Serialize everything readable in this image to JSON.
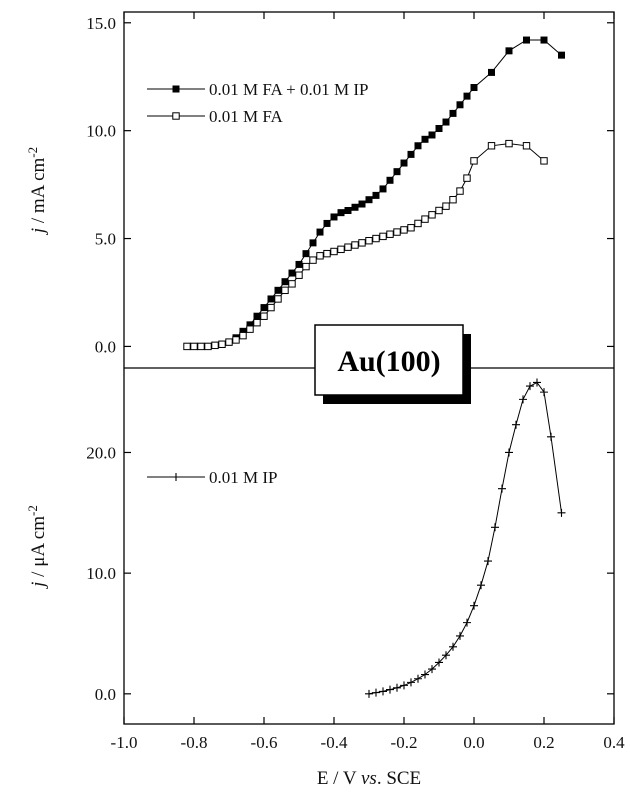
{
  "badge": "Au(100)",
  "chart_data": [
    {
      "type": "line",
      "panel": "top",
      "ylabel_parts": {
        "italic": "j",
        "text": " / mA cm",
        "sup": "-2"
      },
      "ylim": [
        -1.0,
        15.5
      ],
      "yticks": [
        {
          "v": 0.0,
          "label": "0.0"
        },
        {
          "v": 5.0,
          "label": "5.0"
        },
        {
          "v": 10.0,
          "label": "10.0"
        },
        {
          "v": 15.0,
          "label": "15.0"
        }
      ],
      "legend_position": "upper-left",
      "series": [
        {
          "name": "0.01 M FA + 0.01 M IP",
          "marker": "filled-square",
          "x": [
            -0.82,
            -0.8,
            -0.78,
            -0.76,
            -0.74,
            -0.72,
            -0.7,
            -0.68,
            -0.66,
            -0.64,
            -0.62,
            -0.6,
            -0.58,
            -0.56,
            -0.54,
            -0.52,
            -0.5,
            -0.48,
            -0.46,
            -0.44,
            -0.42,
            -0.4,
            -0.38,
            -0.36,
            -0.34,
            -0.32,
            -0.3,
            -0.28,
            -0.26,
            -0.24,
            -0.22,
            -0.2,
            -0.18,
            -0.16,
            -0.14,
            -0.12,
            -0.1,
            -0.08,
            -0.06,
            -0.04,
            -0.02,
            0.0,
            0.05,
            0.1,
            0.15,
            0.2,
            0.25
          ],
          "y": [
            0.0,
            0.0,
            0.0,
            0.0,
            0.05,
            0.1,
            0.2,
            0.4,
            0.7,
            1.0,
            1.4,
            1.8,
            2.2,
            2.6,
            3.0,
            3.4,
            3.8,
            4.3,
            4.8,
            5.3,
            5.7,
            6.0,
            6.2,
            6.3,
            6.45,
            6.6,
            6.8,
            7.0,
            7.3,
            7.7,
            8.1,
            8.5,
            8.9,
            9.3,
            9.6,
            9.8,
            10.1,
            10.4,
            10.8,
            11.2,
            11.6,
            12.0,
            12.7,
            13.7,
            14.2,
            14.2,
            13.5
          ]
        },
        {
          "name": "0.01 M FA",
          "marker": "open-square",
          "x": [
            -0.82,
            -0.8,
            -0.78,
            -0.76,
            -0.74,
            -0.72,
            -0.7,
            -0.68,
            -0.66,
            -0.64,
            -0.62,
            -0.6,
            -0.58,
            -0.56,
            -0.54,
            -0.52,
            -0.5,
            -0.48,
            -0.46,
            -0.44,
            -0.42,
            -0.4,
            -0.38,
            -0.36,
            -0.34,
            -0.32,
            -0.3,
            -0.28,
            -0.26,
            -0.24,
            -0.22,
            -0.2,
            -0.18,
            -0.16,
            -0.14,
            -0.12,
            -0.1,
            -0.08,
            -0.06,
            -0.04,
            -0.02,
            0.0,
            0.05,
            0.1,
            0.15,
            0.2
          ],
          "y": [
            0.0,
            0.0,
            0.0,
            0.0,
            0.05,
            0.1,
            0.2,
            0.3,
            0.5,
            0.8,
            1.1,
            1.4,
            1.8,
            2.2,
            2.6,
            2.9,
            3.3,
            3.7,
            4.0,
            4.2,
            4.3,
            4.4,
            4.5,
            4.6,
            4.7,
            4.8,
            4.9,
            5.0,
            5.1,
            5.2,
            5.3,
            5.4,
            5.5,
            5.7,
            5.9,
            6.1,
            6.3,
            6.5,
            6.8,
            7.2,
            7.8,
            8.6,
            9.3,
            9.4,
            9.3,
            8.6
          ]
        }
      ]
    },
    {
      "type": "line",
      "panel": "bottom",
      "ylabel_parts": {
        "italic": "j",
        "text": " / μA cm",
        "sup": "-2"
      },
      "xlabel_parts": {
        "pre": "E / V ",
        "italic": "vs",
        "post": ". SCE"
      },
      "xlim": [
        -1.0,
        0.4
      ],
      "xticks": [
        {
          "v": -1.0,
          "label": "-1.0"
        },
        {
          "v": -0.8,
          "label": "-0.8"
        },
        {
          "v": -0.6,
          "label": "-0.6"
        },
        {
          "v": -0.4,
          "label": "-0.4"
        },
        {
          "v": -0.2,
          "label": "-0.2"
        },
        {
          "v": 0.0,
          "label": "0.0"
        },
        {
          "v": 0.2,
          "label": "0.2"
        },
        {
          "v": 0.4,
          "label": "0.4"
        }
      ],
      "ylim": [
        -2.5,
        27.0
      ],
      "yticks": [
        {
          "v": 0.0,
          "label": "0.0"
        },
        {
          "v": 10.0,
          "label": "10.0"
        },
        {
          "v": 20.0,
          "label": "20.0"
        }
      ],
      "legend_position": "upper-left",
      "series": [
        {
          "name": "0.01 M IP",
          "marker": "plus",
          "x": [
            -0.3,
            -0.28,
            -0.26,
            -0.24,
            -0.22,
            -0.2,
            -0.18,
            -0.16,
            -0.14,
            -0.12,
            -0.1,
            -0.08,
            -0.06,
            -0.04,
            -0.02,
            0.0,
            0.02,
            0.04,
            0.06,
            0.08,
            0.1,
            0.12,
            0.14,
            0.16,
            0.18,
            0.2,
            0.22,
            0.25
          ],
          "y": [
            0.0,
            0.1,
            0.2,
            0.35,
            0.5,
            0.7,
            0.95,
            1.25,
            1.6,
            2.05,
            2.6,
            3.2,
            3.9,
            4.8,
            5.9,
            7.3,
            9.0,
            11.0,
            13.8,
            17.0,
            20.0,
            22.3,
            24.4,
            25.5,
            25.8,
            25.0,
            21.3,
            15.0
          ]
        }
      ]
    }
  ]
}
